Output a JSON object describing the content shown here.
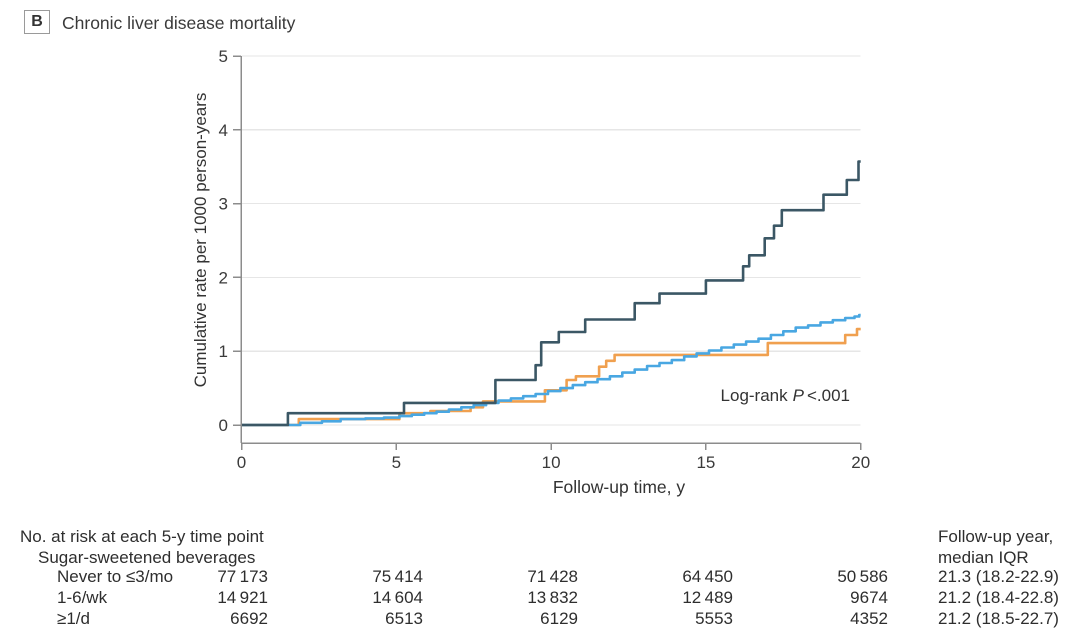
{
  "chart_data": {
    "type": "line",
    "subtype": "step-cumulative-incidence",
    "panel_label": "B",
    "title": "Chronic liver disease mortality",
    "xlabel": "Follow-up time, y",
    "ylabel": "Cumulative rate per 1000 person-years",
    "xlim": [
      0,
      20
    ],
    "ylim": [
      0,
      5
    ],
    "x_ticks": [
      "0",
      "5",
      "10",
      "15",
      "20"
    ],
    "y_ticks": [
      "0",
      "1",
      "2",
      "3",
      "4",
      "5"
    ],
    "grid": true,
    "legend_position": "none",
    "annotation": {
      "prefix": "Log-rank",
      "p_symbol": "P",
      "value": "<.001"
    },
    "colors": {
      "grid": "#e6e6e6",
      "axis": "#8c8c8c",
      "text": "#3a3a3a"
    },
    "series": [
      {
        "name": "Never to ≤3/mo",
        "color": "#49a7e2",
        "z": 2,
        "points": [
          [
            0,
            0
          ],
          [
            1.9,
            0.03
          ],
          [
            2.6,
            0.05
          ],
          [
            3.2,
            0.08
          ],
          [
            4.0,
            0.09
          ],
          [
            4.6,
            0.1
          ],
          [
            5.1,
            0.12
          ],
          [
            5.5,
            0.14
          ],
          [
            5.9,
            0.16
          ],
          [
            6.3,
            0.18
          ],
          [
            6.7,
            0.21
          ],
          [
            7.1,
            0.24
          ],
          [
            7.5,
            0.27
          ],
          [
            7.9,
            0.3
          ],
          [
            8.3,
            0.33
          ],
          [
            8.7,
            0.36
          ],
          [
            9.1,
            0.39
          ],
          [
            9.5,
            0.42
          ],
          [
            9.9,
            0.46
          ],
          [
            10.3,
            0.5
          ],
          [
            10.7,
            0.54
          ],
          [
            11.1,
            0.58
          ],
          [
            11.5,
            0.62
          ],
          [
            11.9,
            0.66
          ],
          [
            12.3,
            0.71
          ],
          [
            12.7,
            0.75
          ],
          [
            13.1,
            0.8
          ],
          [
            13.5,
            0.84
          ],
          [
            13.9,
            0.88
          ],
          [
            14.3,
            0.93
          ],
          [
            14.7,
            0.97
          ],
          [
            15.1,
            1.01
          ],
          [
            15.5,
            1.05
          ],
          [
            15.9,
            1.09
          ],
          [
            16.3,
            1.13
          ],
          [
            16.7,
            1.17
          ],
          [
            17.1,
            1.22
          ],
          [
            17.5,
            1.27
          ],
          [
            17.9,
            1.32
          ],
          [
            18.3,
            1.35
          ],
          [
            18.7,
            1.39
          ],
          [
            19.1,
            1.42
          ],
          [
            19.5,
            1.45
          ],
          [
            19.8,
            1.47
          ],
          [
            19.95,
            1.49
          ]
        ]
      },
      {
        "name": "1-6/wk",
        "color": "#f0a04f",
        "z": 1,
        "points": [
          [
            0,
            0
          ],
          [
            1.85,
            0.08
          ],
          [
            5.1,
            0.16
          ],
          [
            6.1,
            0.19
          ],
          [
            7.4,
            0.24
          ],
          [
            7.8,
            0.32
          ],
          [
            9.8,
            0.47
          ],
          [
            10.5,
            0.61
          ],
          [
            10.8,
            0.66
          ],
          [
            11.55,
            0.79
          ],
          [
            11.78,
            0.87
          ],
          [
            12.05,
            0.95
          ],
          [
            17.0,
            1.11
          ],
          [
            19.5,
            1.22
          ],
          [
            19.88,
            1.3
          ]
        ]
      },
      {
        "name": "≥1/d",
        "color": "#3b5765",
        "z": 3,
        "points": [
          [
            0,
            0
          ],
          [
            1.5,
            0.16
          ],
          [
            5.25,
            0.3
          ],
          [
            8.2,
            0.61
          ],
          [
            9.5,
            0.81
          ],
          [
            9.68,
            1.12
          ],
          [
            10.25,
            1.26
          ],
          [
            11.1,
            1.43
          ],
          [
            12.7,
            1.65
          ],
          [
            13.5,
            1.78
          ],
          [
            15.0,
            1.96
          ],
          [
            16.2,
            2.15
          ],
          [
            16.4,
            2.3
          ],
          [
            16.9,
            2.53
          ],
          [
            17.2,
            2.7
          ],
          [
            17.45,
            2.91
          ],
          [
            18.8,
            3.12
          ],
          [
            19.55,
            3.32
          ],
          [
            19.93,
            3.57
          ]
        ]
      }
    ]
  },
  "risk_table": {
    "title": "No. at risk at each 5-y time point",
    "subtitle": "Sugar-sweetened beverages",
    "followup_header": [
      "Follow-up year,",
      "median IQR"
    ],
    "time_points": [
      "0",
      "5",
      "10",
      "15",
      "20"
    ],
    "rows": [
      {
        "label": "Never to ≤3/mo",
        "values": [
          "77 173",
          "75 414",
          "71 428",
          "64 450",
          "50 586"
        ],
        "followup": "21.3 (18.2-22.9)"
      },
      {
        "label": "1-6/wk",
        "values": [
          "14 921",
          "14 604",
          "13 832",
          "12 489",
          "9674"
        ],
        "followup": "21.2 (18.4-22.8)"
      },
      {
        "label": "≥1/d",
        "values": [
          "6692",
          "6513",
          "6129",
          "5553",
          "4352"
        ],
        "followup": "21.2 (18.5-22.7)"
      }
    ]
  }
}
